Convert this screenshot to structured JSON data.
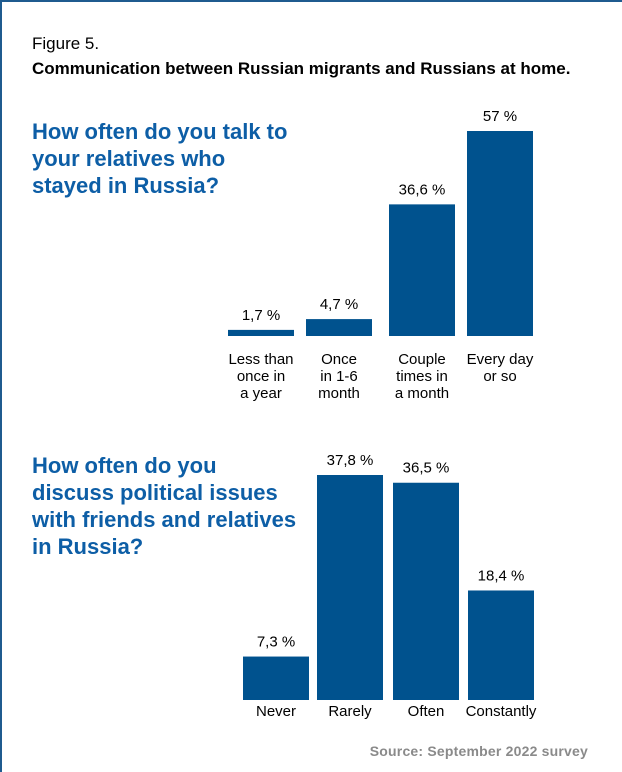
{
  "figure": {
    "label": "Figure 5.",
    "title": "Communication between Russian migrants and Russians at home.",
    "source": "Source: September 2022 survey"
  },
  "colors": {
    "bar": "#00528e",
    "question": "#0d5ea6",
    "frame": "#1f5b8f",
    "source": "#8a8a8a"
  },
  "chart_data": [
    {
      "type": "bar",
      "title": "How often do you talk to your relatives who stayed in Russia?",
      "categories": [
        [
          "Less than",
          "once in",
          "a year"
        ],
        [
          "Once",
          "in 1-6",
          "month"
        ],
        [
          "Couple",
          "times in",
          "a month"
        ],
        [
          "Every day",
          "or so"
        ]
      ],
      "values": [
        1.7,
        4.7,
        36.6,
        57
      ],
      "value_labels": [
        "1,7 %",
        "4,7 %",
        "36,6 %",
        "57 %"
      ],
      "unit": "%",
      "ylim": [
        0,
        57
      ],
      "grid": false,
      "legend": "none"
    },
    {
      "type": "bar",
      "title": "How often do you discuss political issues with friends and relatives in Russia?",
      "categories": [
        [
          "Never"
        ],
        [
          "Rarely"
        ],
        [
          "Often"
        ],
        [
          "Constantly"
        ]
      ],
      "values": [
        7.3,
        37.8,
        36.5,
        18.4
      ],
      "value_labels": [
        "7,3 %",
        "37,8 %",
        "36,5 %",
        "18,4 %"
      ],
      "unit": "%",
      "ylim": [
        0,
        37.8
      ],
      "grid": false,
      "legend": "none"
    }
  ]
}
